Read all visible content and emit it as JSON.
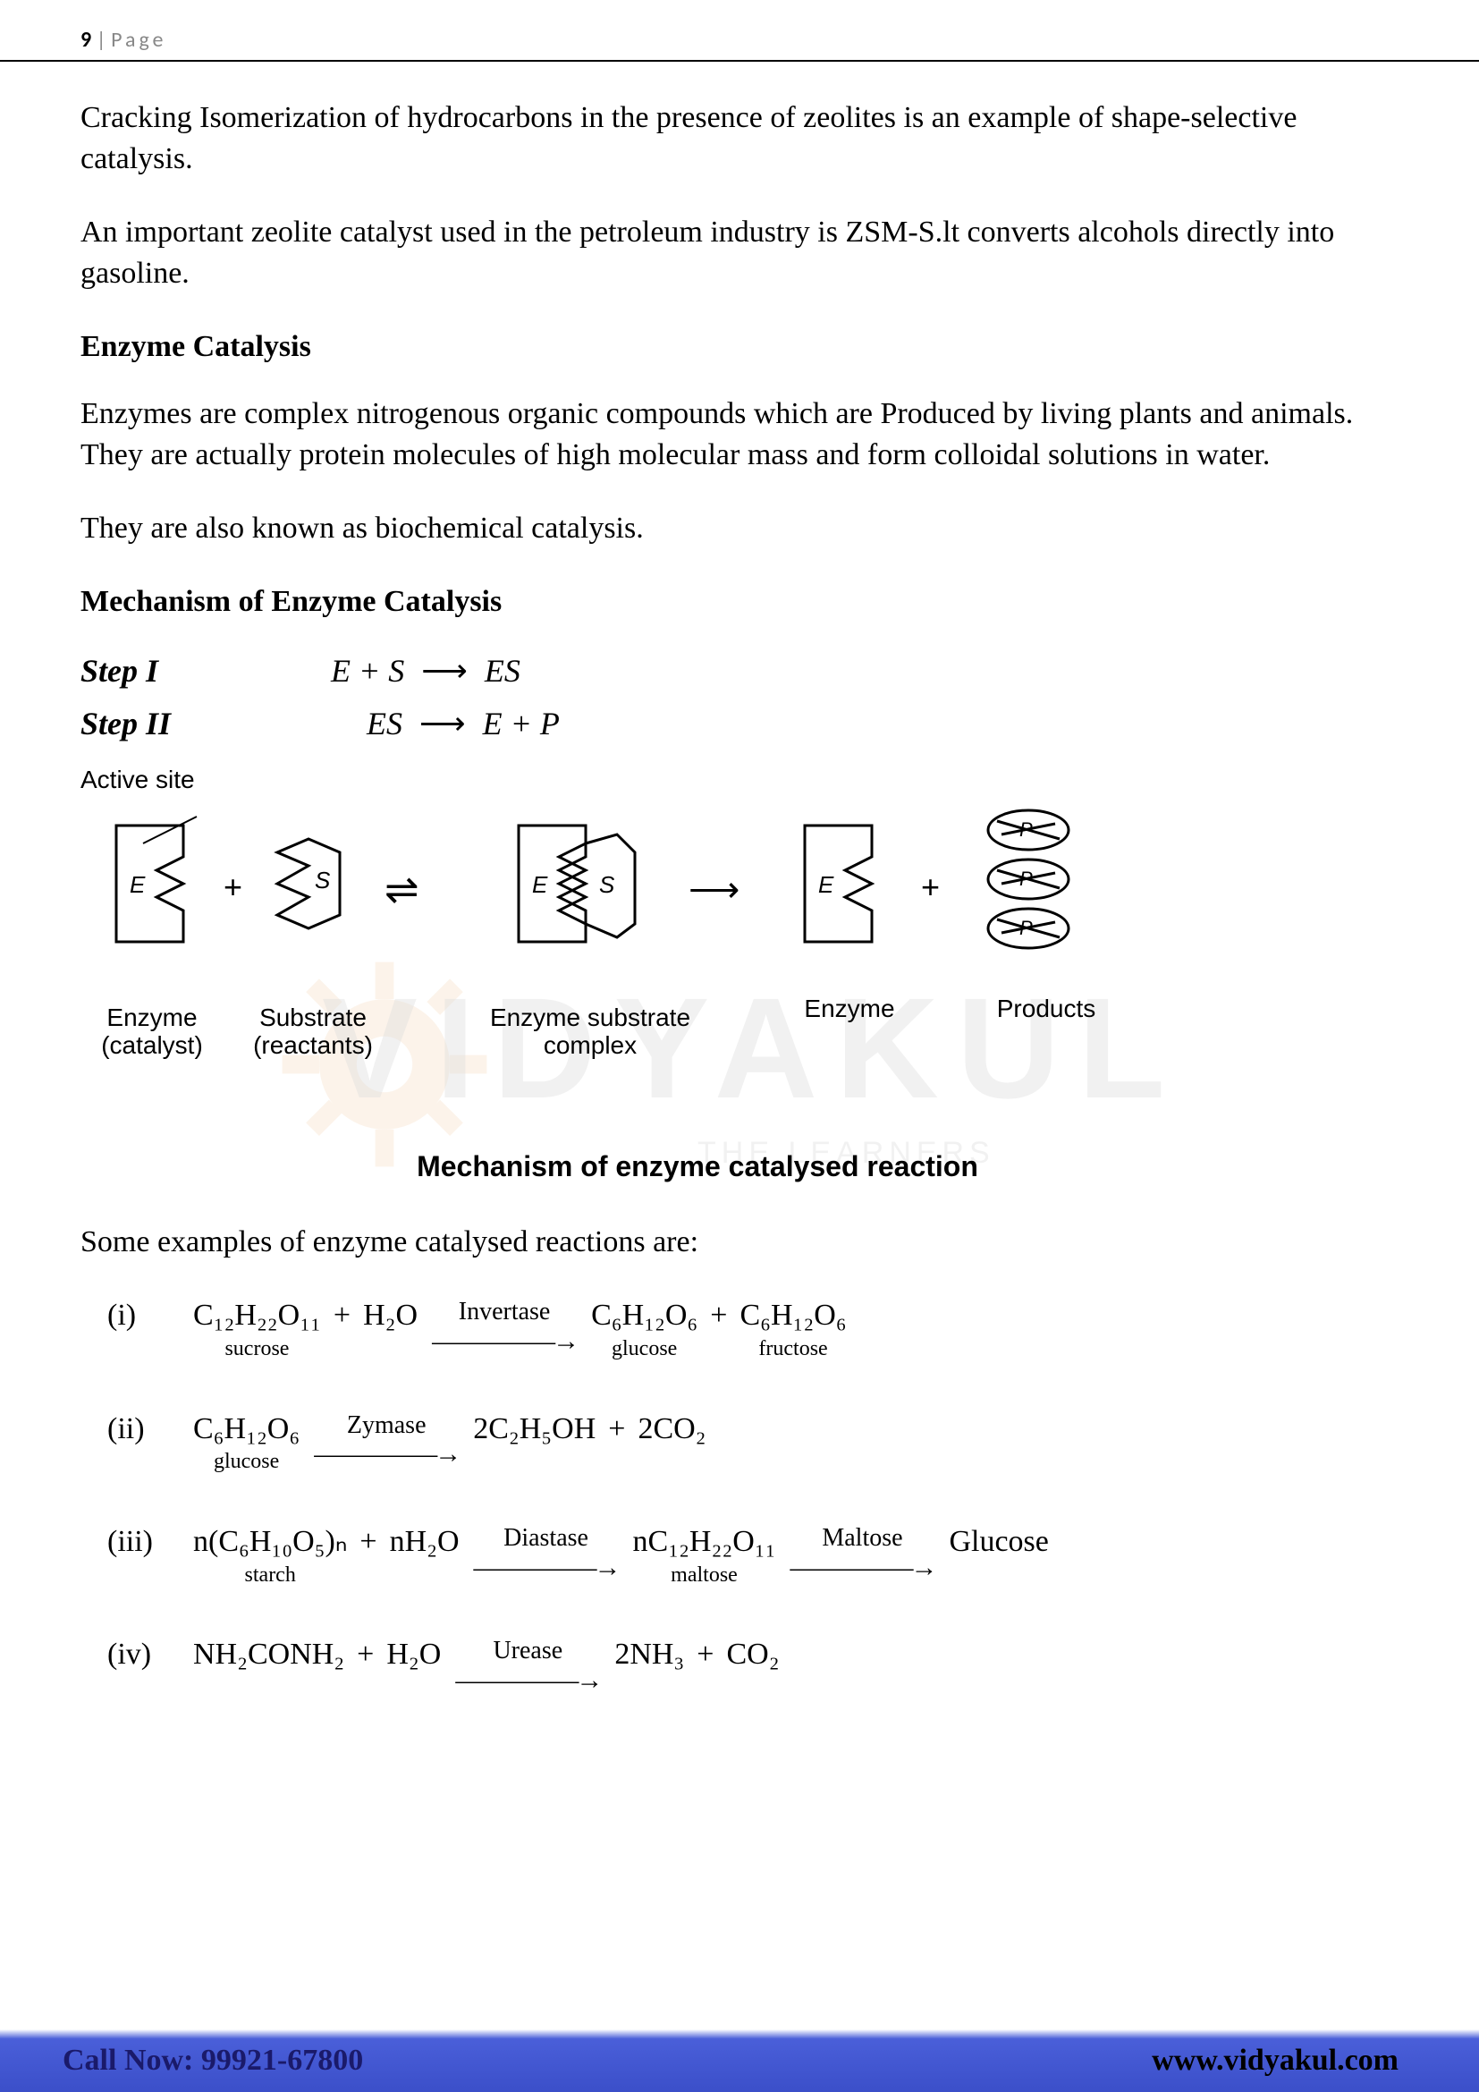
{
  "page": {
    "number": "9",
    "separator": " | ",
    "label": "Page"
  },
  "paragraphs": {
    "p1": "Cracking Isomerization of hydrocarbons in the presence of zeolites is an example of shape-selective catalysis.",
    "p2": "An important zeolite catalyst used in the petroleum industry is ZSM-S.lt converts alcohols directly into gasoline.",
    "h1": "Enzyme Catalysis",
    "p3": "Enzymes are complex nitrogenous organic compounds which are Produced by living plants and animals. They are actually protein molecules of high molecular mass and form colloidal solutions in water.",
    "p4": "They are also known as biochemical catalysis.",
    "h2": "Mechanism of Enzyme Catalysis",
    "p5": "Some examples of enzyme catalysed reactions are:"
  },
  "mechanism_steps": {
    "step1_label": "Step I",
    "step1_lhs": "E + S",
    "step1_rhs": "ES",
    "step2_label": "Step II",
    "step2_lhs": "ES",
    "step2_rhs": "E + P"
  },
  "diagram": {
    "active_site": "Active site",
    "labels": {
      "enzyme": "Enzyme",
      "catalyst": "(catalyst)",
      "substrate": "Substrate",
      "reactants": "(reactants)",
      "complex1": "Enzyme substrate",
      "complex2": "complex",
      "enzyme2": "Enzyme",
      "products": "Products"
    },
    "caption": "Mechanism of enzyme catalysed reaction",
    "colors": {
      "stroke": "#000000",
      "fill": "#ffffff"
    }
  },
  "reactions": [
    {
      "num": "(i)",
      "terms": [
        {
          "formula": "C₁₂H₂₂O₁₁",
          "sublabel": "sucrose"
        },
        {
          "plus": "+"
        },
        {
          "formula": "H₂O"
        },
        {
          "arrow_label": "Invertase"
        },
        {
          "formula": "C₆H₁₂O₆",
          "sublabel": "glucose"
        },
        {
          "plus": "+"
        },
        {
          "formula": "C₆H₁₂O₆",
          "sublabel": "fructose"
        }
      ]
    },
    {
      "num": "(ii)",
      "terms": [
        {
          "formula": "C₆H₁₂O₆",
          "sublabel": "glucose"
        },
        {
          "arrow_label": "Zymase"
        },
        {
          "formula": "2C₂H₅OH"
        },
        {
          "plus": "+"
        },
        {
          "formula": "2CO₂"
        }
      ]
    },
    {
      "num": "(iii)",
      "terms": [
        {
          "formula": "n(C₆H₁₀O₅)ₙ",
          "sublabel": "starch"
        },
        {
          "plus": "+"
        },
        {
          "formula": "nH₂O"
        },
        {
          "arrow_label": "Diastase"
        },
        {
          "formula": "nC₁₂H₂₂O₁₁",
          "sublabel": "maltose"
        },
        {
          "arrow_label": "Maltose"
        },
        {
          "formula": "Glucose"
        }
      ]
    },
    {
      "num": "(iv)",
      "terms": [
        {
          "formula": "NH₂CONH₂"
        },
        {
          "plus": "+"
        },
        {
          "formula": "H₂O"
        },
        {
          "arrow_label": "Urease"
        },
        {
          "formula": "2NH₃"
        },
        {
          "plus": "+"
        },
        {
          "formula": "CO₂"
        }
      ]
    }
  ],
  "watermark": {
    "main": "VIDYAKUL",
    "sub": "THE LEARNERS"
  },
  "footer": {
    "call": "Call Now: 99921-67800",
    "site": "www.vidyakul.com"
  }
}
